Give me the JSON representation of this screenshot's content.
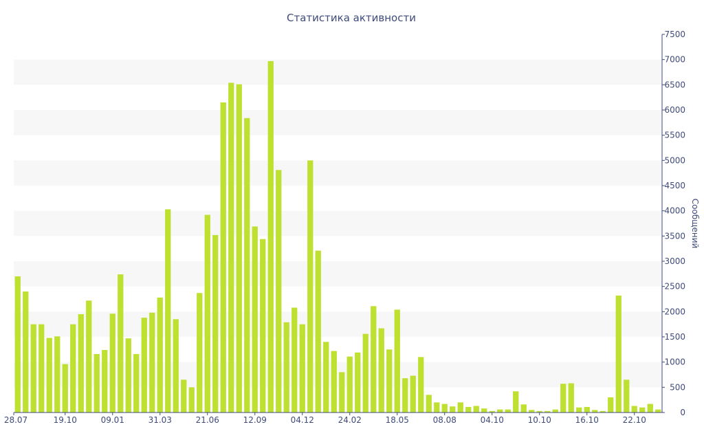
{
  "chart_data": {
    "type": "bar",
    "title": "Статистика активности",
    "xlabel": "",
    "ylabel": "Сообщений",
    "ylim": [
      0,
      7500
    ],
    "y_ticks": [
      0,
      500,
      1000,
      1500,
      2000,
      2500,
      3000,
      3500,
      4000,
      4500,
      5000,
      5500,
      6000,
      6500,
      7000,
      7500
    ],
    "y_axis_side": "right",
    "grid": "alternating horizontal bands",
    "bar_color": "#bde031",
    "band_color": "#f7f7f7",
    "text_color": "#3e4a7a",
    "x_tick_labels": [
      {
        "index": 0,
        "label": "28.07"
      },
      {
        "index": 6,
        "label": "19.10"
      },
      {
        "index": 12,
        "label": "09.01"
      },
      {
        "index": 18,
        "label": "31.03"
      },
      {
        "index": 24,
        "label": "21.06"
      },
      {
        "index": 30,
        "label": "12.09"
      },
      {
        "index": 36,
        "label": "04.12"
      },
      {
        "index": 42,
        "label": "24.02"
      },
      {
        "index": 48,
        "label": "18.05"
      },
      {
        "index": 54,
        "label": "08.08"
      },
      {
        "index": 60,
        "label": "04.10"
      },
      {
        "index": 66,
        "label": "10.10"
      },
      {
        "index": 72,
        "label": "16.10"
      },
      {
        "index": 78,
        "label": "22.10"
      }
    ],
    "values": [
      2700,
      2400,
      1750,
      1750,
      1480,
      1510,
      960,
      1750,
      1950,
      2220,
      1160,
      1240,
      1960,
      2740,
      1470,
      1160,
      1880,
      1980,
      2280,
      4030,
      1850,
      650,
      500,
      2370,
      3920,
      3520,
      6150,
      6540,
      6510,
      5840,
      3690,
      3440,
      6970,
      4810,
      1790,
      2080,
      1750,
      5000,
      3210,
      1400,
      1220,
      800,
      1110,
      1190,
      1560,
      2110,
      1670,
      1250,
      2040,
      680,
      730,
      1100,
      350,
      200,
      170,
      120,
      200,
      110,
      130,
      80,
      30,
      60,
      60,
      420,
      160,
      50,
      30,
      30,
      60,
      570,
      580,
      100,
      110,
      50,
      30,
      300,
      2320,
      650,
      130,
      100,
      170,
      60
    ]
  }
}
